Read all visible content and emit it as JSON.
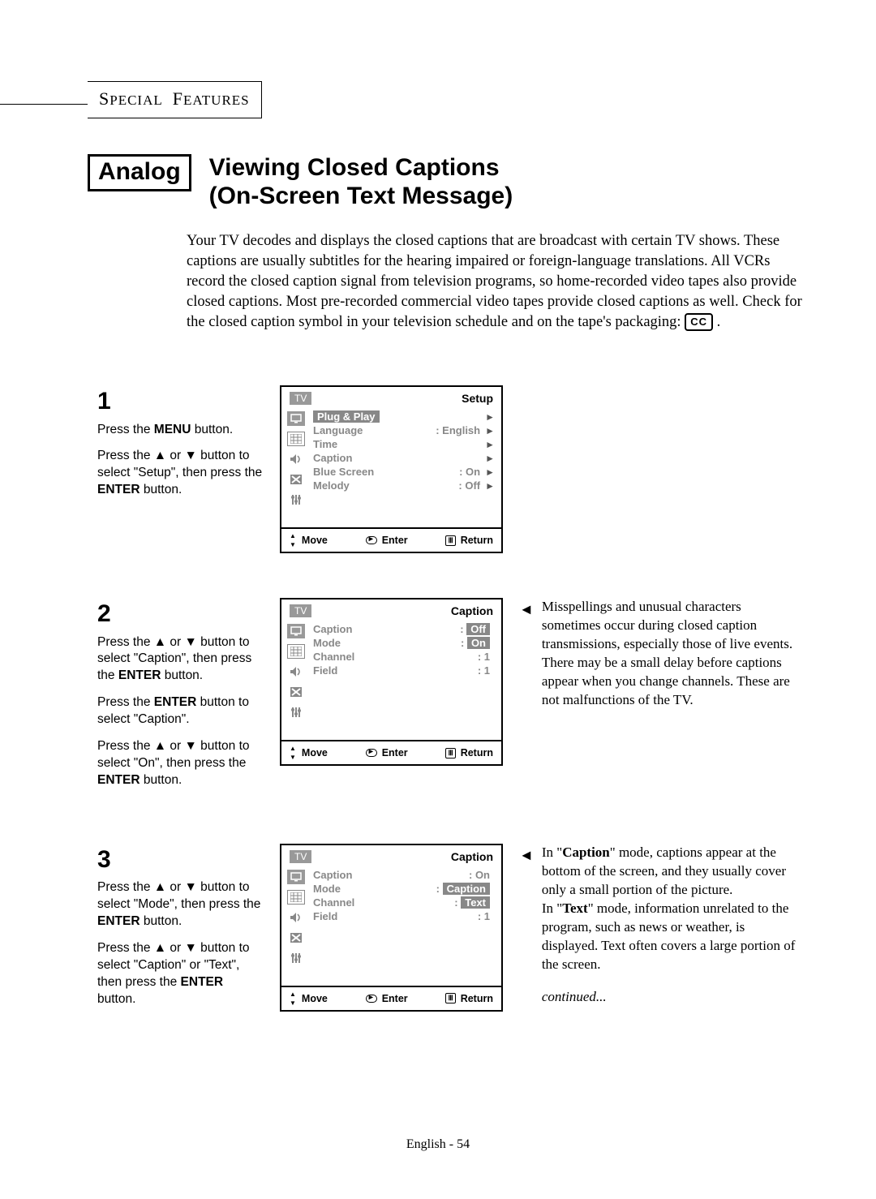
{
  "section_header": "Special Features",
  "analog_label": "Analog",
  "title_line1": "Viewing Closed Captions",
  "title_line2": "(On-Screen Text Message)",
  "intro": "Your TV decodes and displays the closed captions that are broadcast with certain TV shows. These captions are usually subtitles for the hearing impaired or foreign-language translations. All VCRs record the closed caption signal from television programs, so home-recorded video tapes also provide closed captions. Most pre-recorded commercial video tapes provide closed captions as well. Check for the closed caption symbol in your television schedule and on the tape's packaging:",
  "cc_symbol": "CC",
  "steps": [
    {
      "num": "1",
      "lines": [
        "Press the <b>MENU</b> button.",
        "Press the ▲ or ▼ button to select \"Setup\", then press the <b>ENTER</b> button."
      ],
      "menu": {
        "tag": "TV",
        "title": "Setup",
        "tall": true,
        "rows": [
          {
            "label": "Plug & Play",
            "label_hl": true,
            "val": "",
            "arrow": true
          },
          {
            "label": "Language",
            "val": ":  English",
            "arrow": true
          },
          {
            "label": "Time",
            "val": "",
            "arrow": true
          },
          {
            "label": "Caption",
            "val": "",
            "arrow": true
          },
          {
            "label": "Blue Screen",
            "val": ":  On",
            "arrow": true
          },
          {
            "label": "Melody",
            "val": ":  Off",
            "arrow": true
          }
        ],
        "icons": 6
      },
      "note": null
    },
    {
      "num": "2",
      "lines": [
        "Press the ▲ or ▼ button to select \"Caption\", then press the <b>ENTER</b> button.",
        "Press the <b>ENTER</b> button to select \"Caption\".",
        "Press the ▲ or ▼ button to select \"On\", then press the <b>ENTER</b> button."
      ],
      "menu": {
        "tag": "TV",
        "title": "Caption",
        "tall": false,
        "rows": [
          {
            "label": "Caption",
            "val": "Off",
            "val_hl": true,
            "prefix": ": "
          },
          {
            "label": "Mode",
            "val": "On",
            "val_hl": true,
            "prefix": ": "
          },
          {
            "label": "Channel",
            "val": ":  1"
          },
          {
            "label": "Field",
            "val": ":  1"
          }
        ],
        "icons": 6
      },
      "note": "Misspellings and unusual characters sometimes occur during closed caption transmissions, especially those of live events. There may be a small delay before captions appear when you change channels. These are not malfunctions of the TV."
    },
    {
      "num": "3",
      "lines": [
        "Press the ▲ or ▼ button to select \"Mode\", then press the <b>ENTER</b> button.",
        "Press the ▲ or ▼ button to select \"Caption\" or \"Text\", then press the <b>ENTER</b> button."
      ],
      "menu": {
        "tag": "TV",
        "title": "Caption",
        "tall": false,
        "rows": [
          {
            "label": "Caption",
            "val": ":  On"
          },
          {
            "label": "Mode",
            "val": "Caption",
            "val_hl": true,
            "prefix": ": "
          },
          {
            "label": "Channel",
            "val": "Text",
            "val_hl": true,
            "prefix": ": "
          },
          {
            "label": "Field",
            "val": ":  1"
          }
        ],
        "icons": 6
      },
      "note": "In \"<b>Caption</b>\" mode, captions appear at the bottom of the screen, and they usually cover only a small portion of the picture.<br>In \"<b>Text</b>\" mode, information unrelated to the program, such as news or weather, is displayed. Text often covers a large portion of the screen.",
      "continued": "continued..."
    }
  ],
  "footer_move": "Move",
  "footer_enter": "Enter",
  "footer_return": "Return",
  "page_footer": "English - 54"
}
